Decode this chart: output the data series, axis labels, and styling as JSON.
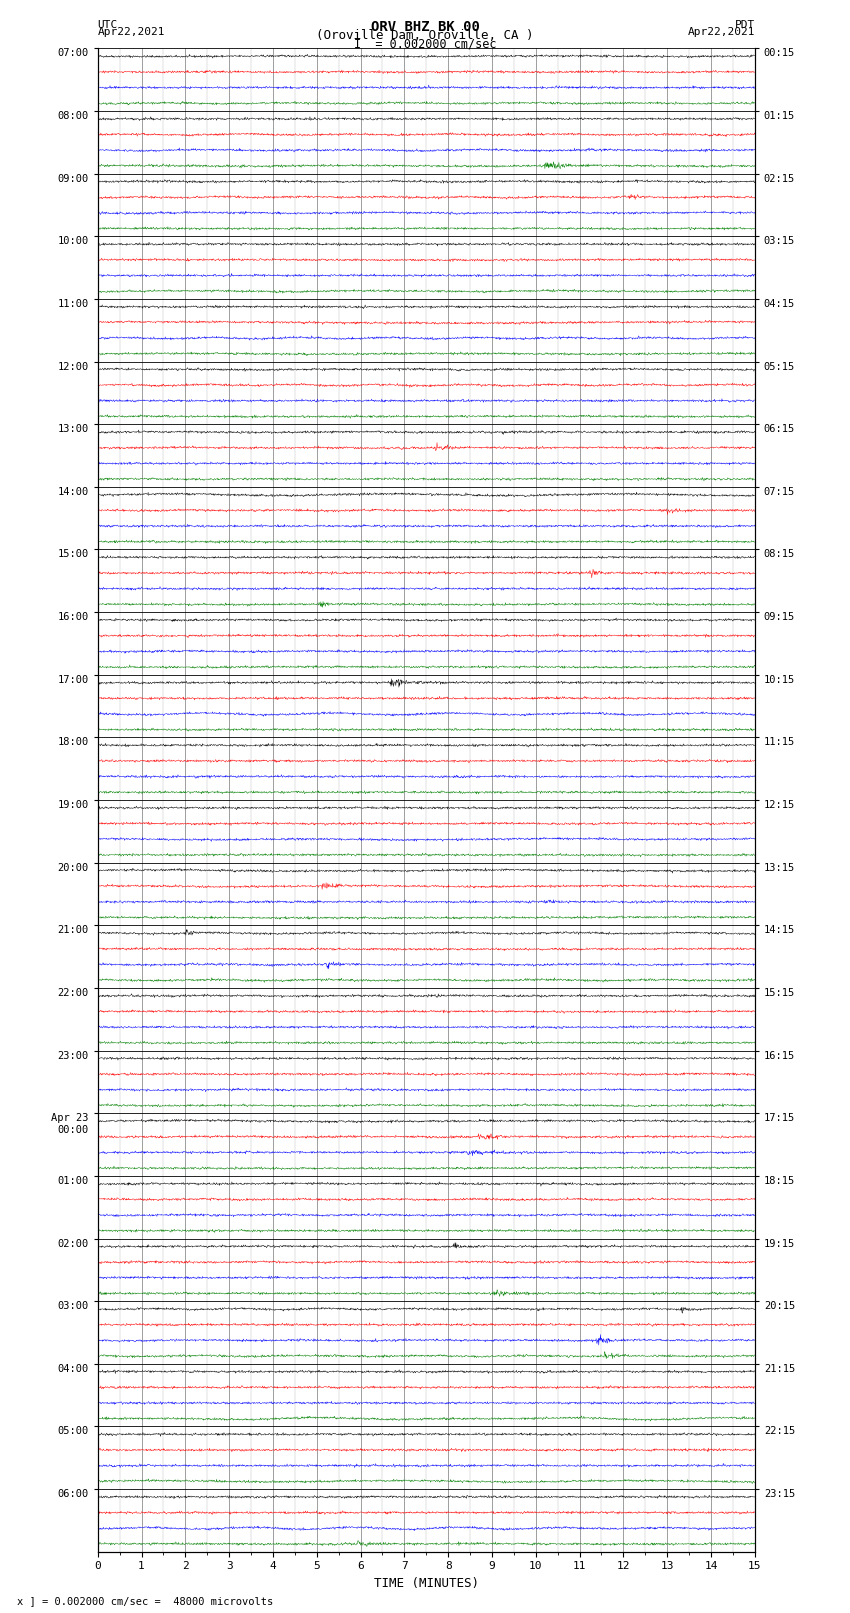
{
  "title_line1": "ORV BHZ BK 00",
  "title_line2": "(Oroville Dam, Oroville, CA )",
  "scale_text": "I  = 0.002000 cm/sec",
  "left_label": "UTC",
  "left_date": "Apr22,2021",
  "right_label": "PDT",
  "right_date": "Apr22,2021",
  "xlabel": "TIME (MINUTES)",
  "footer_text": "x ] = 0.002000 cm/sec =  48000 microvolts",
  "xmin": 0,
  "xmax": 15,
  "n_groups": 24,
  "colors": [
    "black",
    "red",
    "blue",
    "green"
  ],
  "left_times": [
    "07:00",
    "08:00",
    "09:00",
    "10:00",
    "11:00",
    "12:00",
    "13:00",
    "14:00",
    "15:00",
    "16:00",
    "17:00",
    "18:00",
    "19:00",
    "20:00",
    "21:00",
    "22:00",
    "23:00",
    "Apr 23\n00:00",
    "01:00",
    "02:00",
    "03:00",
    "04:00",
    "05:00",
    "06:00"
  ],
  "right_times": [
    "00:15",
    "01:15",
    "02:15",
    "03:15",
    "04:15",
    "05:15",
    "06:15",
    "07:15",
    "08:15",
    "09:15",
    "10:15",
    "11:15",
    "12:15",
    "13:15",
    "14:15",
    "15:15",
    "16:15",
    "17:15",
    "18:15",
    "19:15",
    "20:15",
    "21:15",
    "22:15",
    "23:15"
  ],
  "noise_scale": 0.035,
  "random_seed": 42,
  "bg_color": "white",
  "fig_width": 8.5,
  "fig_height": 16.13,
  "dpi": 100,
  "xticks": [
    0,
    1,
    2,
    3,
    4,
    5,
    6,
    7,
    8,
    9,
    10,
    11,
    12,
    13,
    14,
    15
  ],
  "grid_major_color": "#777777",
  "grid_minor_color": "#bbbbbb",
  "lw": 0.35,
  "n_points": 1500
}
